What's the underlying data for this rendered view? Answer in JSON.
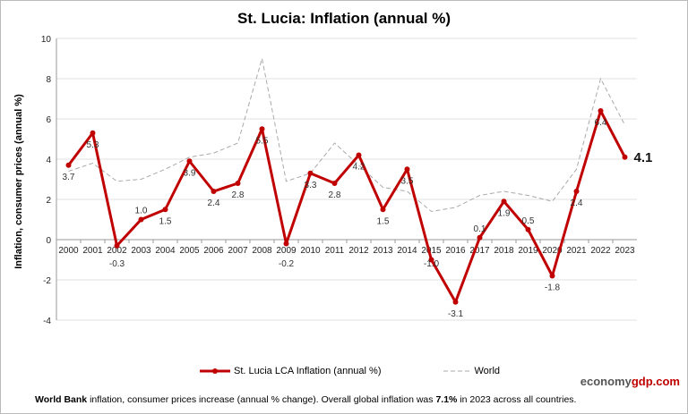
{
  "title": "St. Lucia: Inflation (annual %)",
  "footer": {
    "b1": "World Bank",
    "t1": " inflation, consumer prices increase (annual % change).   Overall global inflation was ",
    "b2": "7.1%",
    "t2": " in 2023 across all countries."
  },
  "brand": {
    "a": "economy",
    "b": "gdp",
    ".com": ".com"
  },
  "chart_data": {
    "type": "line",
    "title": "St. Lucia: Inflation (annual %)",
    "ylabel": "Inflation, consumer prices (annual %)",
    "ylim": [
      -4,
      10
    ],
    "yticks": [
      -4,
      -2,
      0,
      2,
      4,
      6,
      8,
      10
    ],
    "grid": true,
    "legend_position": "bottom",
    "categories": [
      "2000",
      "2001",
      "2002",
      "2003",
      "2004",
      "2005",
      "2006",
      "2007",
      "2008",
      "2009",
      "2010",
      "2011",
      "2012",
      "2013",
      "2014",
      "2015",
      "2016",
      "2017",
      "2018",
      "2019",
      "2020",
      "2021",
      "2022",
      "2023"
    ],
    "series": [
      {
        "name": "St. Lucia LCA Inflation (annual %)",
        "color": "#c00000",
        "values": [
          3.7,
          5.3,
          -0.3,
          1.0,
          1.5,
          3.9,
          2.4,
          2.8,
          5.5,
          -0.2,
          3.3,
          2.8,
          4.2,
          1.5,
          3.5,
          -1.0,
          -3.1,
          0.1,
          1.9,
          0.5,
          -1.8,
          2.4,
          6.4,
          4.1
        ],
        "labels": [
          "3.7",
          "5.3",
          "-0.3",
          "1.0",
          "1.5",
          "3.9",
          "2.4",
          "2.8",
          "5.5",
          "-0.2",
          "3.3",
          "2.8",
          "4.2",
          "1.5",
          "3.5",
          "-1.0",
          "-3.1",
          "0.1",
          "1.9",
          "0.5",
          "-1.8",
          "2.4",
          "6.4",
          "4.1"
        ]
      },
      {
        "name": "World",
        "color": "#aaaaaa",
        "values": [
          3.4,
          3.8,
          2.9,
          3.0,
          3.5,
          4.1,
          4.3,
          4.8,
          9.0,
          2.9,
          3.3,
          4.8,
          3.7,
          2.6,
          2.4,
          1.4,
          1.6,
          2.2,
          2.4,
          2.2,
          1.9,
          3.5,
          8.0,
          5.7
        ]
      }
    ]
  }
}
